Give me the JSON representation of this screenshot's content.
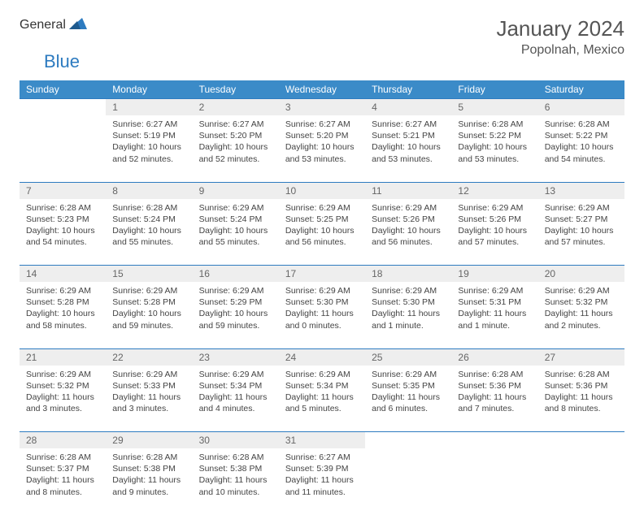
{
  "logo": {
    "general": "General",
    "blue": "Blue"
  },
  "title": {
    "month": "January 2024",
    "location": "Popolnah, Mexico"
  },
  "colors": {
    "header_bg": "#3b8bc8",
    "accent_border": "#2d7bc0",
    "daynum_bg": "#eeeeee",
    "text": "#444444",
    "title_text": "#555555",
    "logo_gray": "#6b6b6b",
    "logo_blue": "#2d7bc0"
  },
  "days_of_week": [
    "Sunday",
    "Monday",
    "Tuesday",
    "Wednesday",
    "Thursday",
    "Friday",
    "Saturday"
  ],
  "weeks": [
    {
      "nums": [
        "",
        "1",
        "2",
        "3",
        "4",
        "5",
        "6"
      ],
      "cells": [
        "",
        "Sunrise: 6:27 AM\nSunset: 5:19 PM\nDaylight: 10 hours and 52 minutes.",
        "Sunrise: 6:27 AM\nSunset: 5:20 PM\nDaylight: 10 hours and 52 minutes.",
        "Sunrise: 6:27 AM\nSunset: 5:20 PM\nDaylight: 10 hours and 53 minutes.",
        "Sunrise: 6:27 AM\nSunset: 5:21 PM\nDaylight: 10 hours and 53 minutes.",
        "Sunrise: 6:28 AM\nSunset: 5:22 PM\nDaylight: 10 hours and 53 minutes.",
        "Sunrise: 6:28 AM\nSunset: 5:22 PM\nDaylight: 10 hours and 54 minutes."
      ]
    },
    {
      "nums": [
        "7",
        "8",
        "9",
        "10",
        "11",
        "12",
        "13"
      ],
      "cells": [
        "Sunrise: 6:28 AM\nSunset: 5:23 PM\nDaylight: 10 hours and 54 minutes.",
        "Sunrise: 6:28 AM\nSunset: 5:24 PM\nDaylight: 10 hours and 55 minutes.",
        "Sunrise: 6:29 AM\nSunset: 5:24 PM\nDaylight: 10 hours and 55 minutes.",
        "Sunrise: 6:29 AM\nSunset: 5:25 PM\nDaylight: 10 hours and 56 minutes.",
        "Sunrise: 6:29 AM\nSunset: 5:26 PM\nDaylight: 10 hours and 56 minutes.",
        "Sunrise: 6:29 AM\nSunset: 5:26 PM\nDaylight: 10 hours and 57 minutes.",
        "Sunrise: 6:29 AM\nSunset: 5:27 PM\nDaylight: 10 hours and 57 minutes."
      ]
    },
    {
      "nums": [
        "14",
        "15",
        "16",
        "17",
        "18",
        "19",
        "20"
      ],
      "cells": [
        "Sunrise: 6:29 AM\nSunset: 5:28 PM\nDaylight: 10 hours and 58 minutes.",
        "Sunrise: 6:29 AM\nSunset: 5:28 PM\nDaylight: 10 hours and 59 minutes.",
        "Sunrise: 6:29 AM\nSunset: 5:29 PM\nDaylight: 10 hours and 59 minutes.",
        "Sunrise: 6:29 AM\nSunset: 5:30 PM\nDaylight: 11 hours and 0 minutes.",
        "Sunrise: 6:29 AM\nSunset: 5:30 PM\nDaylight: 11 hours and 1 minute.",
        "Sunrise: 6:29 AM\nSunset: 5:31 PM\nDaylight: 11 hours and 1 minute.",
        "Sunrise: 6:29 AM\nSunset: 5:32 PM\nDaylight: 11 hours and 2 minutes."
      ]
    },
    {
      "nums": [
        "21",
        "22",
        "23",
        "24",
        "25",
        "26",
        "27"
      ],
      "cells": [
        "Sunrise: 6:29 AM\nSunset: 5:32 PM\nDaylight: 11 hours and 3 minutes.",
        "Sunrise: 6:29 AM\nSunset: 5:33 PM\nDaylight: 11 hours and 3 minutes.",
        "Sunrise: 6:29 AM\nSunset: 5:34 PM\nDaylight: 11 hours and 4 minutes.",
        "Sunrise: 6:29 AM\nSunset: 5:34 PM\nDaylight: 11 hours and 5 minutes.",
        "Sunrise: 6:29 AM\nSunset: 5:35 PM\nDaylight: 11 hours and 6 minutes.",
        "Sunrise: 6:28 AM\nSunset: 5:36 PM\nDaylight: 11 hours and 7 minutes.",
        "Sunrise: 6:28 AM\nSunset: 5:36 PM\nDaylight: 11 hours and 8 minutes."
      ]
    },
    {
      "nums": [
        "28",
        "29",
        "30",
        "31",
        "",
        "",
        ""
      ],
      "cells": [
        "Sunrise: 6:28 AM\nSunset: 5:37 PM\nDaylight: 11 hours and 8 minutes.",
        "Sunrise: 6:28 AM\nSunset: 5:38 PM\nDaylight: 11 hours and 9 minutes.",
        "Sunrise: 6:28 AM\nSunset: 5:38 PM\nDaylight: 11 hours and 10 minutes.",
        "Sunrise: 6:27 AM\nSunset: 5:39 PM\nDaylight: 11 hours and 11 minutes.",
        "",
        "",
        ""
      ]
    }
  ]
}
